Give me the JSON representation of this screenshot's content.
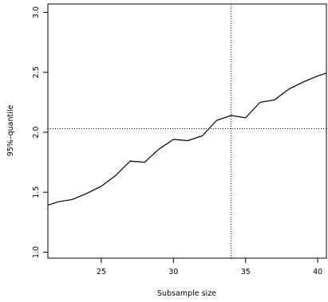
{
  "chart_data": {
    "type": "line",
    "title": "",
    "xlabel": "Subsample size",
    "ylabel": "95%–quantile",
    "xlim": [
      21.3,
      40.6
    ],
    "ylim": [
      0.95,
      3.07
    ],
    "xticks": [
      25,
      30,
      35,
      40
    ],
    "xtick_labels": [
      "25",
      "30",
      "35",
      "40"
    ],
    "yticks": [
      1.0,
      1.5,
      2.0,
      2.5,
      3.0
    ],
    "ytick_labels": [
      "1.0",
      "1.5",
      "2.0",
      "2.5",
      "3.0"
    ],
    "grid": false,
    "legend": "none",
    "line_color": "#000000",
    "x": [
      21,
      22,
      23,
      24,
      25,
      26,
      27,
      28,
      29,
      30,
      31,
      32,
      33,
      34,
      35,
      36,
      37,
      38,
      39,
      40,
      41
    ],
    "y": [
      1.38,
      1.42,
      1.44,
      1.49,
      1.55,
      1.64,
      1.76,
      1.75,
      1.86,
      1.94,
      1.93,
      1.97,
      2.1,
      2.14,
      2.12,
      2.25,
      2.27,
      2.36,
      2.42,
      2.47,
      2.51
    ],
    "reference_lines": {
      "vertical_x": 34,
      "horizontal_y": 2.03,
      "style": "dotted"
    }
  }
}
